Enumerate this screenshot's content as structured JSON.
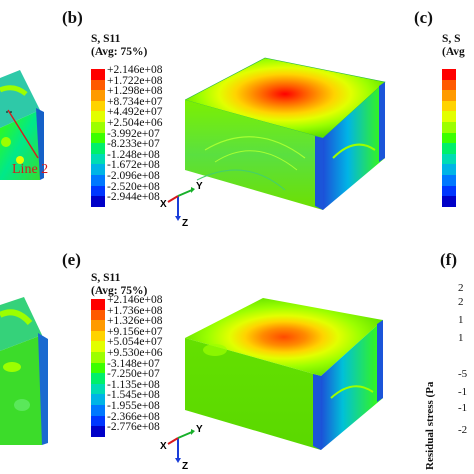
{
  "panels": {
    "b": {
      "letter": "(b)"
    },
    "c": {
      "letter": "(c)"
    },
    "e": {
      "letter": "(e)"
    },
    "f": {
      "letter": "(f)"
    }
  },
  "legend_b": {
    "title_line1": "S, S11",
    "title_line2": "(Avg: 75%)",
    "ticks": [
      "+2.146e+08",
      "+1.722e+08",
      "+1.298e+08",
      "+8.734e+07",
      "+4.492e+07",
      "+2.504e+06",
      "-3.992e+07",
      "-8.233e+07",
      "-1.248e+08",
      "-1.672e+08",
      "-2.096e+08",
      "-2.520e+08",
      "-2.944e+08"
    ]
  },
  "legend_e": {
    "title_line1": "S, S11",
    "title_line2": "(Avg: 75%)",
    "ticks": [
      "+2.146e+08",
      "+1.736e+08",
      "+1.326e+08",
      "+9.156e+07",
      "+5.054e+07",
      "+9.530e+06",
      "-3.148e+07",
      "-7.250e+07",
      "-1.135e+08",
      "-1.545e+08",
      "-1.955e+08",
      "-2.366e+08",
      "-2.776e+08"
    ]
  },
  "legend_c_partial": {
    "title_line1": "S, S",
    "title_line2": "(Avg"
  },
  "colors": [
    "#ff0000",
    "#ff5a00",
    "#ff9a00",
    "#ffd300",
    "#e2ff00",
    "#9cff00",
    "#3cff00",
    "#00f06a",
    "#00dcb4",
    "#00b4e6",
    "#0078ff",
    "#0036ff",
    "#0000c8"
  ],
  "annotation": {
    "text": "Line 2"
  },
  "triad": {
    "x": "X",
    "y": "Y",
    "z": "Z"
  },
  "panel_f_partial": {
    "ylabel": "Residual stress (Pa",
    "ticks": [
      "2",
      "2",
      "1",
      "1",
      "-5",
      "-1",
      "-1",
      "-2"
    ]
  }
}
